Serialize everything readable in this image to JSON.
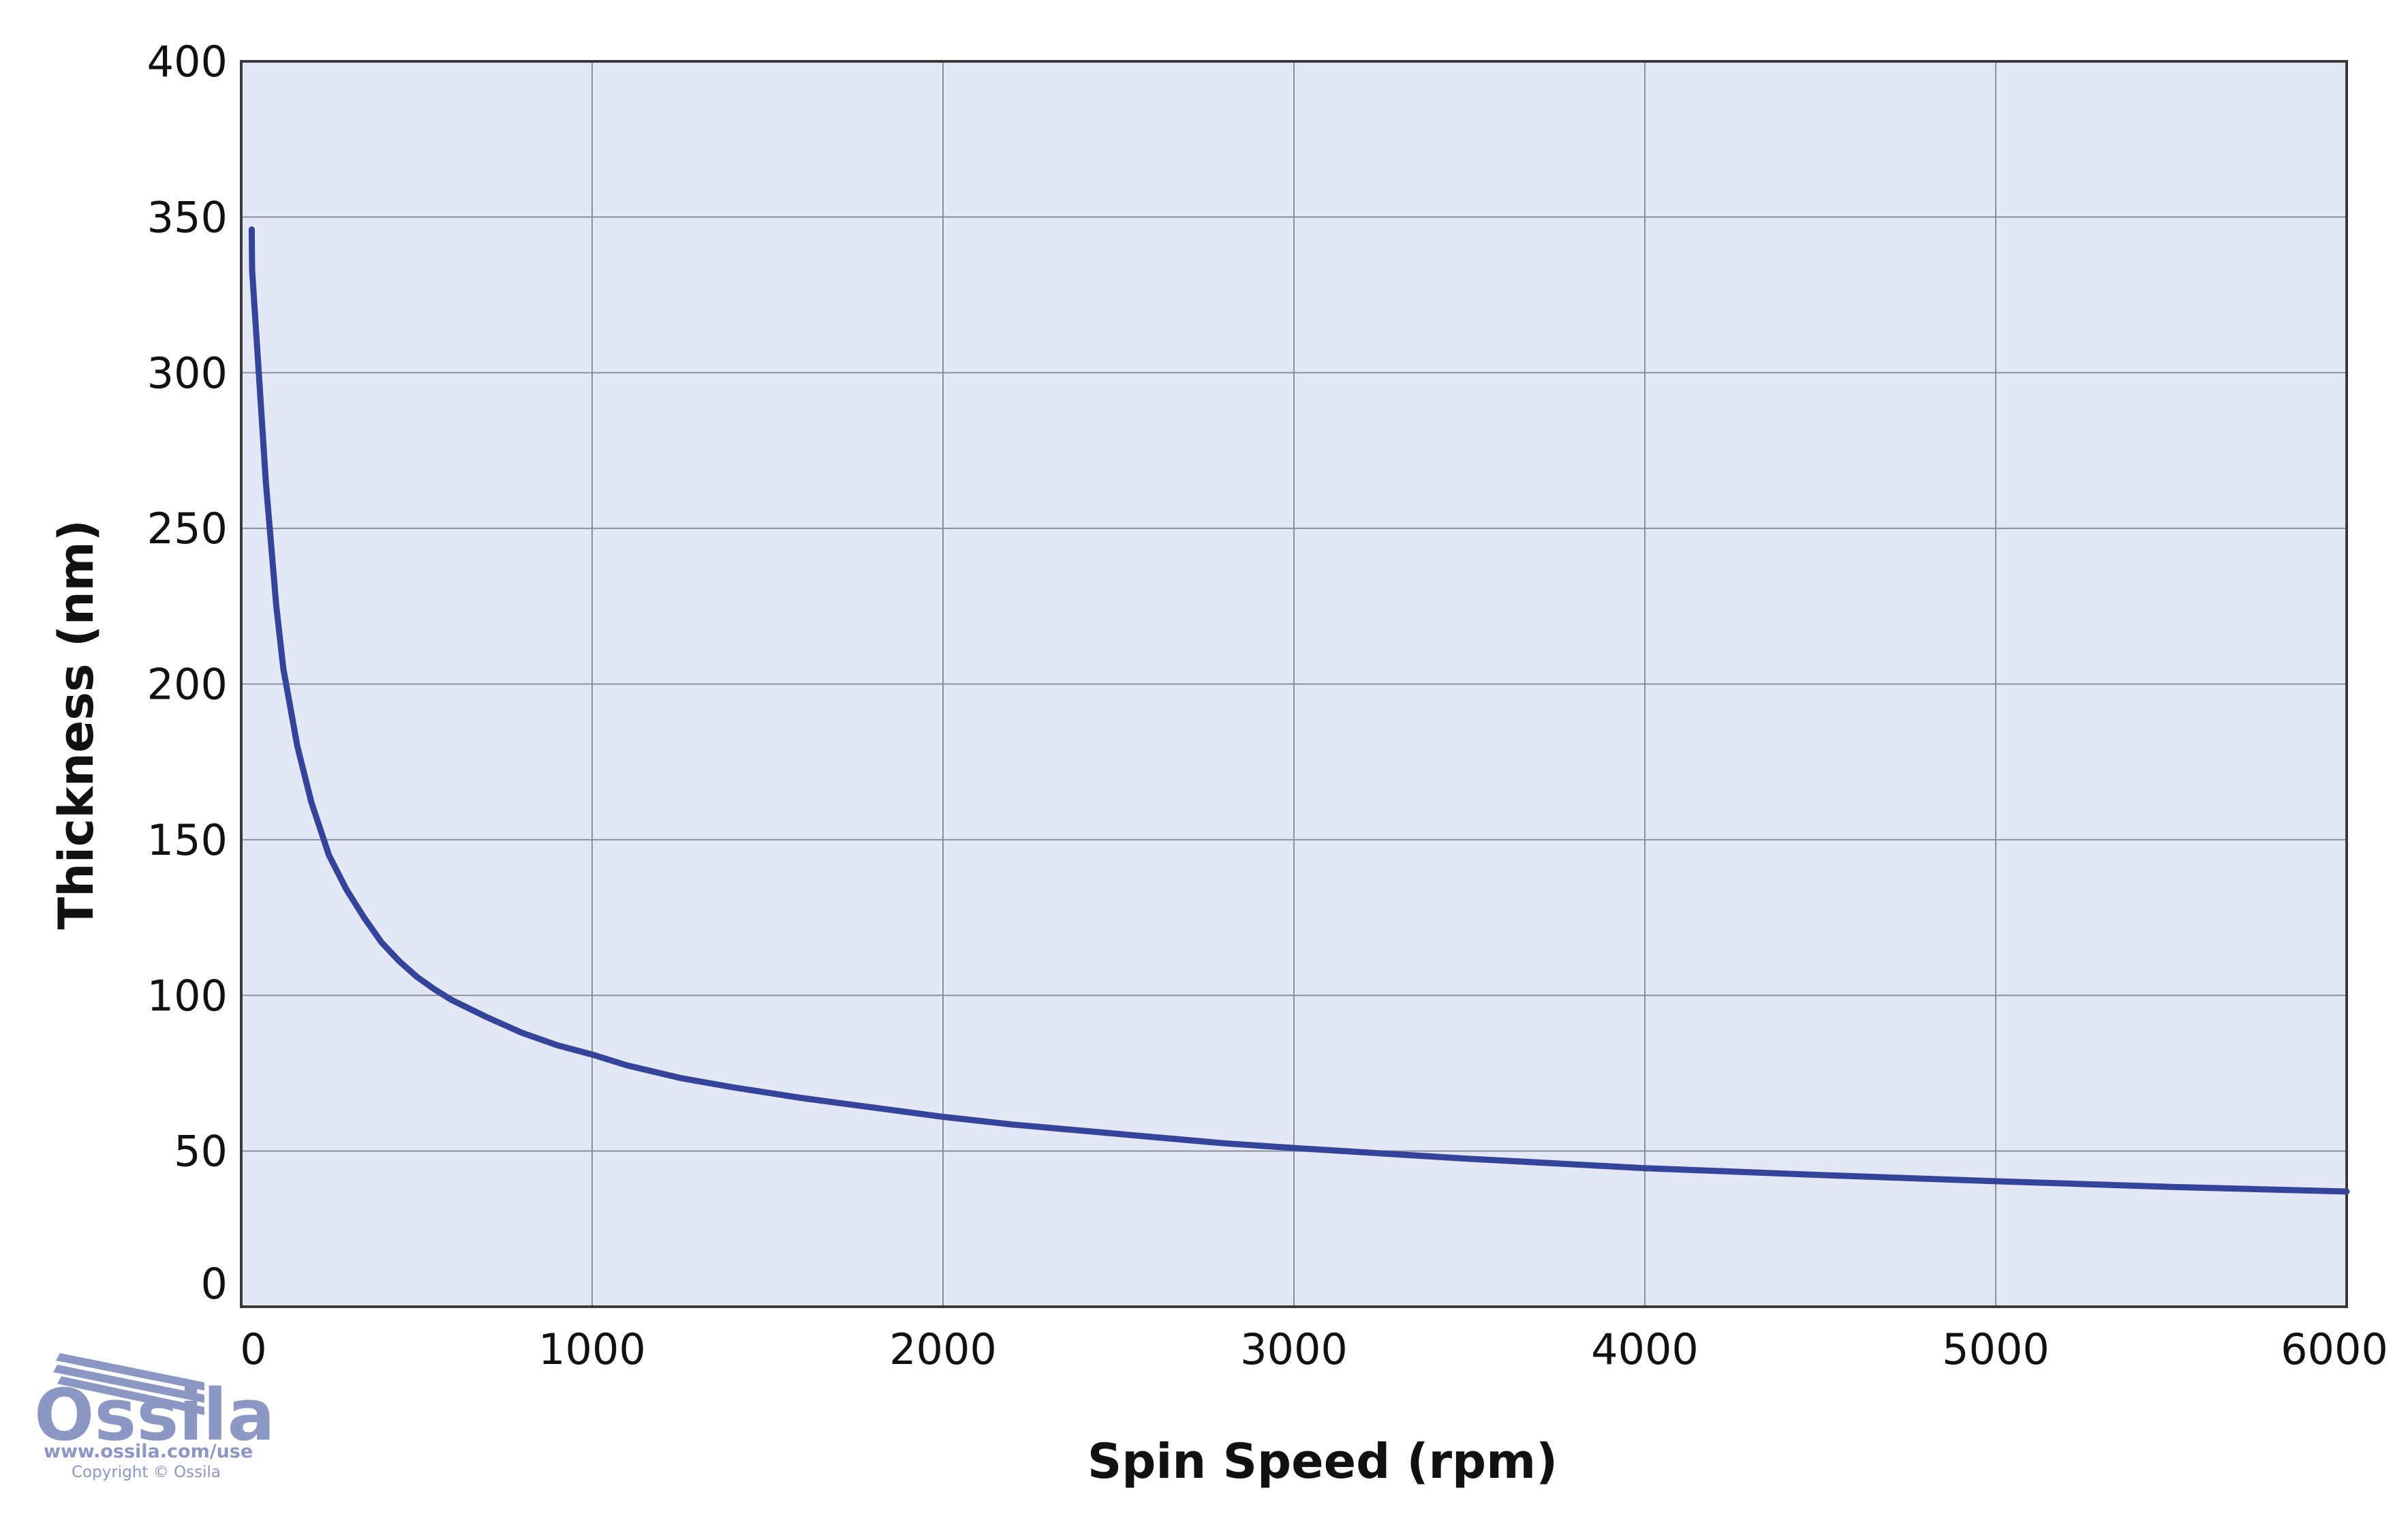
{
  "chart_data": {
    "type": "line",
    "title": "",
    "xlabel": "Spin Speed (rpm)",
    "ylabel": "Thickness (nm)",
    "xlim": [
      0,
      6000
    ],
    "ylim": [
      0,
      400
    ],
    "x_ticks": [
      "0",
      "1000",
      "2000",
      "3000",
      "4000",
      "5000",
      "6000"
    ],
    "y_ticks": [
      "0",
      "50",
      "100",
      "150",
      "200",
      "250",
      "300",
      "350",
      "400"
    ],
    "grid": true,
    "legend": "none",
    "plot_background": "#e4e8f5",
    "series": [
      {
        "color": "#33449a",
        "x": [
          30,
          31,
          50,
          70,
          100,
          120,
          160,
          200,
          250,
          300,
          350,
          400,
          450,
          500,
          550,
          600,
          700,
          800,
          900,
          1000,
          1100,
          1250,
          1400,
          1600,
          1800,
          2000,
          2200,
          2400,
          2600,
          2800,
          3000,
          3500,
          4000,
          4500,
          5000,
          5500,
          6000
        ],
        "y": [
          346,
          333,
          300,
          265,
          225,
          205,
          180,
          162,
          145,
          134,
          125,
          117,
          111,
          106,
          102,
          98.5,
          93,
          88,
          84,
          81,
          77.5,
          73.5,
          70.5,
          67,
          64,
          61,
          58.5,
          56.5,
          54.5,
          52.5,
          51,
          47.5,
          44.5,
          42.3,
          40.3,
          38.5,
          37
        ]
      }
    ]
  },
  "branding": {
    "logo_text": "Ossila",
    "url": "www.ossila.com/use",
    "copyright": "Copyright © Ossila"
  }
}
